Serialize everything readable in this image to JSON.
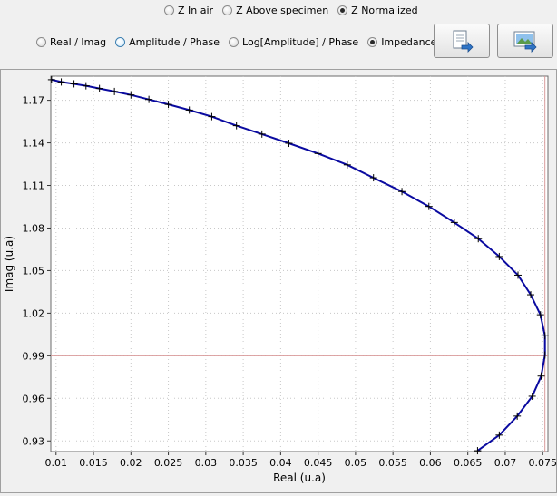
{
  "z_mode": {
    "options": [
      {
        "label": "Z In air",
        "checked": false
      },
      {
        "label": "Z Above specimen",
        "checked": false
      },
      {
        "label": "Z Normalized",
        "checked": true
      }
    ]
  },
  "plot_mode": {
    "options": [
      {
        "label": "Real / Imag",
        "checked": false
      },
      {
        "label": "Amplitude / Phase",
        "checked": false
      },
      {
        "label": "Log[Amplitude] / Phase",
        "checked": false
      },
      {
        "label": "Impedance plane",
        "checked": true
      }
    ]
  },
  "toolbar": {
    "export_data_icon": "document-export-icon",
    "export_image_icon": "image-export-icon"
  },
  "chart_data": {
    "type": "line",
    "xlabel": "Real (u.a)",
    "ylabel": "Imag (u.a)",
    "xlim": [
      0.0093,
      0.0757
    ],
    "ylim": [
      0.9225,
      1.187
    ],
    "xticks": [
      0.01,
      0.015,
      0.02,
      0.025,
      0.03,
      0.035,
      0.04,
      0.045,
      0.05,
      0.055,
      0.06,
      0.065,
      0.07,
      0.075
    ],
    "xtick_labels": [
      "0.01",
      "0.015",
      "0.02",
      "0.025",
      "0.03",
      "0.035",
      "0.04",
      "0.045",
      "0.05",
      "0.055",
      "0.06",
      "0.065",
      "0.07",
      "0.075"
    ],
    "yticks": [
      0.93,
      0.96,
      0.99,
      1.02,
      1.05,
      1.08,
      1.11,
      1.14,
      1.17
    ],
    "ytick_labels": [
      "0.93",
      "0.96",
      "0.99",
      "1.02",
      "1.05",
      "1.08",
      "1.11",
      "1.14",
      "1.17"
    ],
    "grid": true,
    "line_color": "#0a0aa0",
    "cursor_color": "#d99a9a",
    "cursor": {
      "x": 0.0753,
      "y": 0.99
    },
    "series": [
      {
        "x": [
          0.0094,
          0.0107,
          0.0124,
          0.014,
          0.0158,
          0.0178,
          0.02,
          0.0224,
          0.025,
          0.0278,
          0.0308,
          0.0341,
          0.0375,
          0.0411,
          0.045,
          0.0489,
          0.0524,
          0.0562,
          0.0598,
          0.0632,
          0.0664,
          0.0692,
          0.0717,
          0.0734,
          0.0747,
          0.0753,
          0.0753,
          0.0748,
          0.0736,
          0.0716,
          0.0692,
          0.0663
        ],
        "y": [
          1.1845,
          1.1829,
          1.1816,
          1.1802,
          1.1783,
          1.1762,
          1.1738,
          1.1706,
          1.1671,
          1.1631,
          1.1585,
          1.1521,
          1.1462,
          1.1397,
          1.1325,
          1.1245,
          1.1154,
          1.1057,
          1.0952,
          1.0839,
          1.0725,
          1.0599,
          1.0468,
          1.033,
          1.0189,
          1.0041,
          0.9905,
          0.9757,
          0.9615,
          0.9475,
          0.9341,
          0.9231
        ]
      }
    ]
  }
}
